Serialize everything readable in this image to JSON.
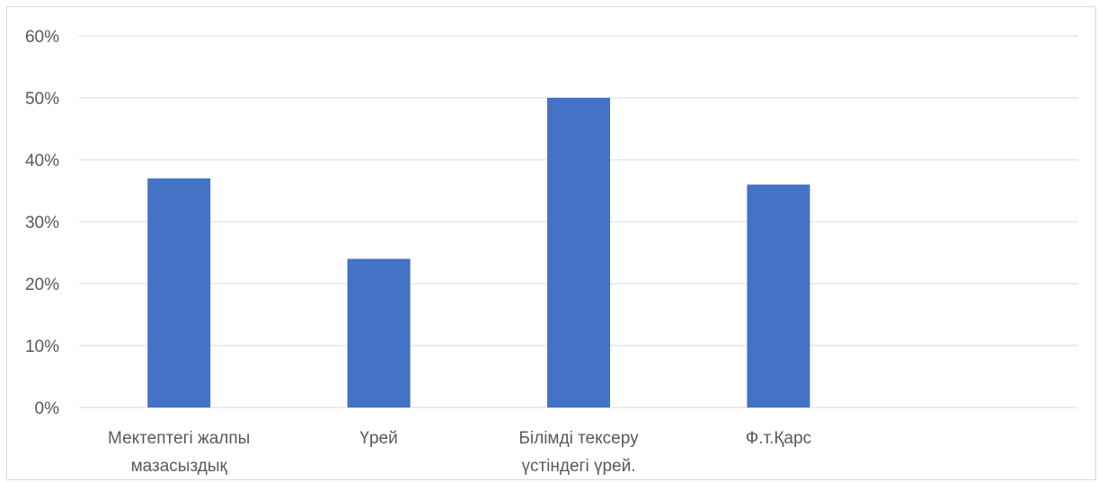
{
  "chart_data": {
    "type": "bar",
    "categories": [
      [
        "Мектептегі жалпы",
        "мазасыздық"
      ],
      [
        "Үрей"
      ],
      [
        "Білімді тексеру",
        "үстіндегі үрей."
      ],
      [
        "Ф.т.Қарс"
      ],
      [
        ""
      ]
    ],
    "values": [
      0.37,
      0.24,
      0.5,
      0.36,
      null
    ],
    "y_ticks": [
      "0%",
      "10%",
      "20%",
      "30%",
      "40%",
      "50%",
      "60%"
    ],
    "ylim": [
      0,
      0.6
    ],
    "grid": true,
    "bar_color": "#4472c4",
    "grid_color": "#d9d9d9",
    "title": "",
    "xlabel": "",
    "ylabel": ""
  }
}
